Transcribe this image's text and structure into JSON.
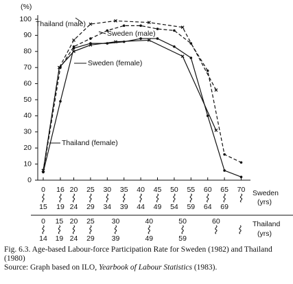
{
  "chart_data": {
    "type": "line",
    "ylabel": "(%)",
    "ylim": [
      0,
      100
    ],
    "yticks": [
      0,
      10,
      20,
      30,
      40,
      50,
      60,
      70,
      80,
      90,
      100
    ],
    "xlim": [
      0,
      70
    ],
    "xlabel": "Sweden",
    "xlabel_unit": "(yrs)",
    "xticks": [
      {
        "value": 0,
        "label": "0"
      },
      {
        "value": 16,
        "label": "16"
      },
      {
        "value": 20,
        "label": "20"
      },
      {
        "value": 25,
        "label": "25"
      },
      {
        "value": 30,
        "label": "30"
      },
      {
        "value": 35,
        "label": "35"
      },
      {
        "value": 40,
        "label": "40"
      },
      {
        "value": 45,
        "label": "45"
      },
      {
        "value": 50,
        "label": "50"
      },
      {
        "value": 55,
        "label": "55"
      },
      {
        "value": 60,
        "label": "60"
      },
      {
        "value": 65,
        "label": "65"
      },
      {
        "value": 70,
        "label": "70"
      }
    ],
    "xtick_ends": [
      "15",
      "19",
      "24",
      "29",
      "34",
      "39",
      "44",
      "49",
      "54",
      "59",
      "64",
      "69",
      null
    ],
    "x2label": "Thailand",
    "x2label_unit": "(yrs)",
    "x2ticks": [
      {
        "value": 0,
        "label": "0"
      },
      {
        "value": 15,
        "label": "15"
      },
      {
        "value": 20,
        "label": "20"
      },
      {
        "value": 25,
        "label": "25"
      },
      {
        "value": 32.5,
        "label": "30"
      },
      {
        "value": 42.5,
        "label": "40"
      },
      {
        "value": 52.5,
        "label": "50"
      },
      {
        "value": 62.5,
        "label": "60"
      }
    ],
    "x2tick_ends": [
      "14",
      "19",
      "24",
      "29",
      "39",
      "49",
      "59",
      null
    ],
    "series": [
      {
        "name": "Thailand (male)",
        "color": "#111111",
        "line_style": "dashed",
        "marker": "x",
        "x": [
          0,
          15,
          20,
          25,
          32.5,
          42.5,
          52.5,
          62.5
        ],
        "values": [
          6,
          70,
          87,
          97,
          99,
          98,
          95,
          56
        ]
      },
      {
        "name": "Sweden (male)",
        "color": "#111111",
        "line_style": "dashed",
        "marker": "circle",
        "x": [
          0,
          16,
          20,
          25,
          30,
          35,
          40,
          45,
          50,
          55,
          60,
          65,
          70
        ],
        "values": [
          5,
          70,
          83,
          88,
          93,
          96,
          96,
          94,
          93,
          85,
          68,
          16,
          11
        ]
      },
      {
        "name": "Sweden (female)",
        "color": "#111111",
        "line_style": "solid",
        "marker": "circle",
        "x": [
          0,
          16,
          20,
          25,
          30,
          35,
          40,
          45,
          50,
          55,
          60,
          65,
          70
        ],
        "values": [
          5,
          49,
          82,
          85,
          85,
          86,
          88,
          88,
          83,
          76,
          40,
          6,
          2
        ]
      },
      {
        "name": "Thailand (female)",
        "color": "#111111",
        "line_style": "solid",
        "marker": "x",
        "x": [
          0,
          15,
          20,
          25,
          32.5,
          42.5,
          52.5,
          62.5
        ],
        "values": [
          6,
          70,
          80,
          84,
          86,
          87,
          77,
          31
        ]
      }
    ],
    "caption": "Fig. 6.3.  Age-based Labour-force Participation Rate for Sweden (1982) and Thailand (1980)",
    "source": [
      "Source: Graph based on ILO, ",
      "Yearbook of Labour Statistics",
      " (1983)."
    ]
  }
}
